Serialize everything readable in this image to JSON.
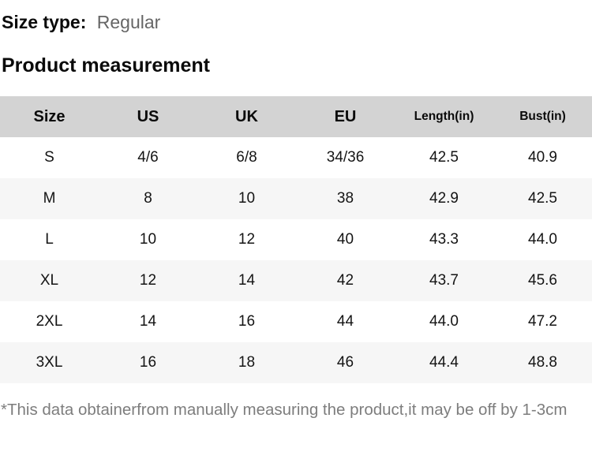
{
  "size_type": {
    "label": "Size type:",
    "value": "Regular"
  },
  "section_title": "Product measurement",
  "table": {
    "columns": [
      "Size",
      "US",
      "UK",
      "EU",
      "Length(in)",
      "Bust(in)"
    ],
    "rows": [
      [
        "S",
        "4/6",
        "6/8",
        "34/36",
        "42.5",
        "40.9"
      ],
      [
        "M",
        "8",
        "10",
        "38",
        "42.9",
        "42.5"
      ],
      [
        "L",
        "10",
        "12",
        "40",
        "43.3",
        "44.0"
      ],
      [
        "XL",
        "12",
        "14",
        "42",
        "43.7",
        "45.6"
      ],
      [
        "2XL",
        "14",
        "16",
        "44",
        "44.0",
        "47.2"
      ],
      [
        "3XL",
        "16",
        "18",
        "46",
        "44.4",
        "48.8"
      ]
    ]
  },
  "footnote": "*This data obtainerfrom manually measuring the product,it may be off by 1-3cm",
  "colors": {
    "header_bg": "#d3d3d3",
    "stripe_bg": "#f6f6f6",
    "heading_text": "#0a0a0a",
    "size_type_value": "#666666",
    "footnote_text": "#7d7d7d"
  }
}
